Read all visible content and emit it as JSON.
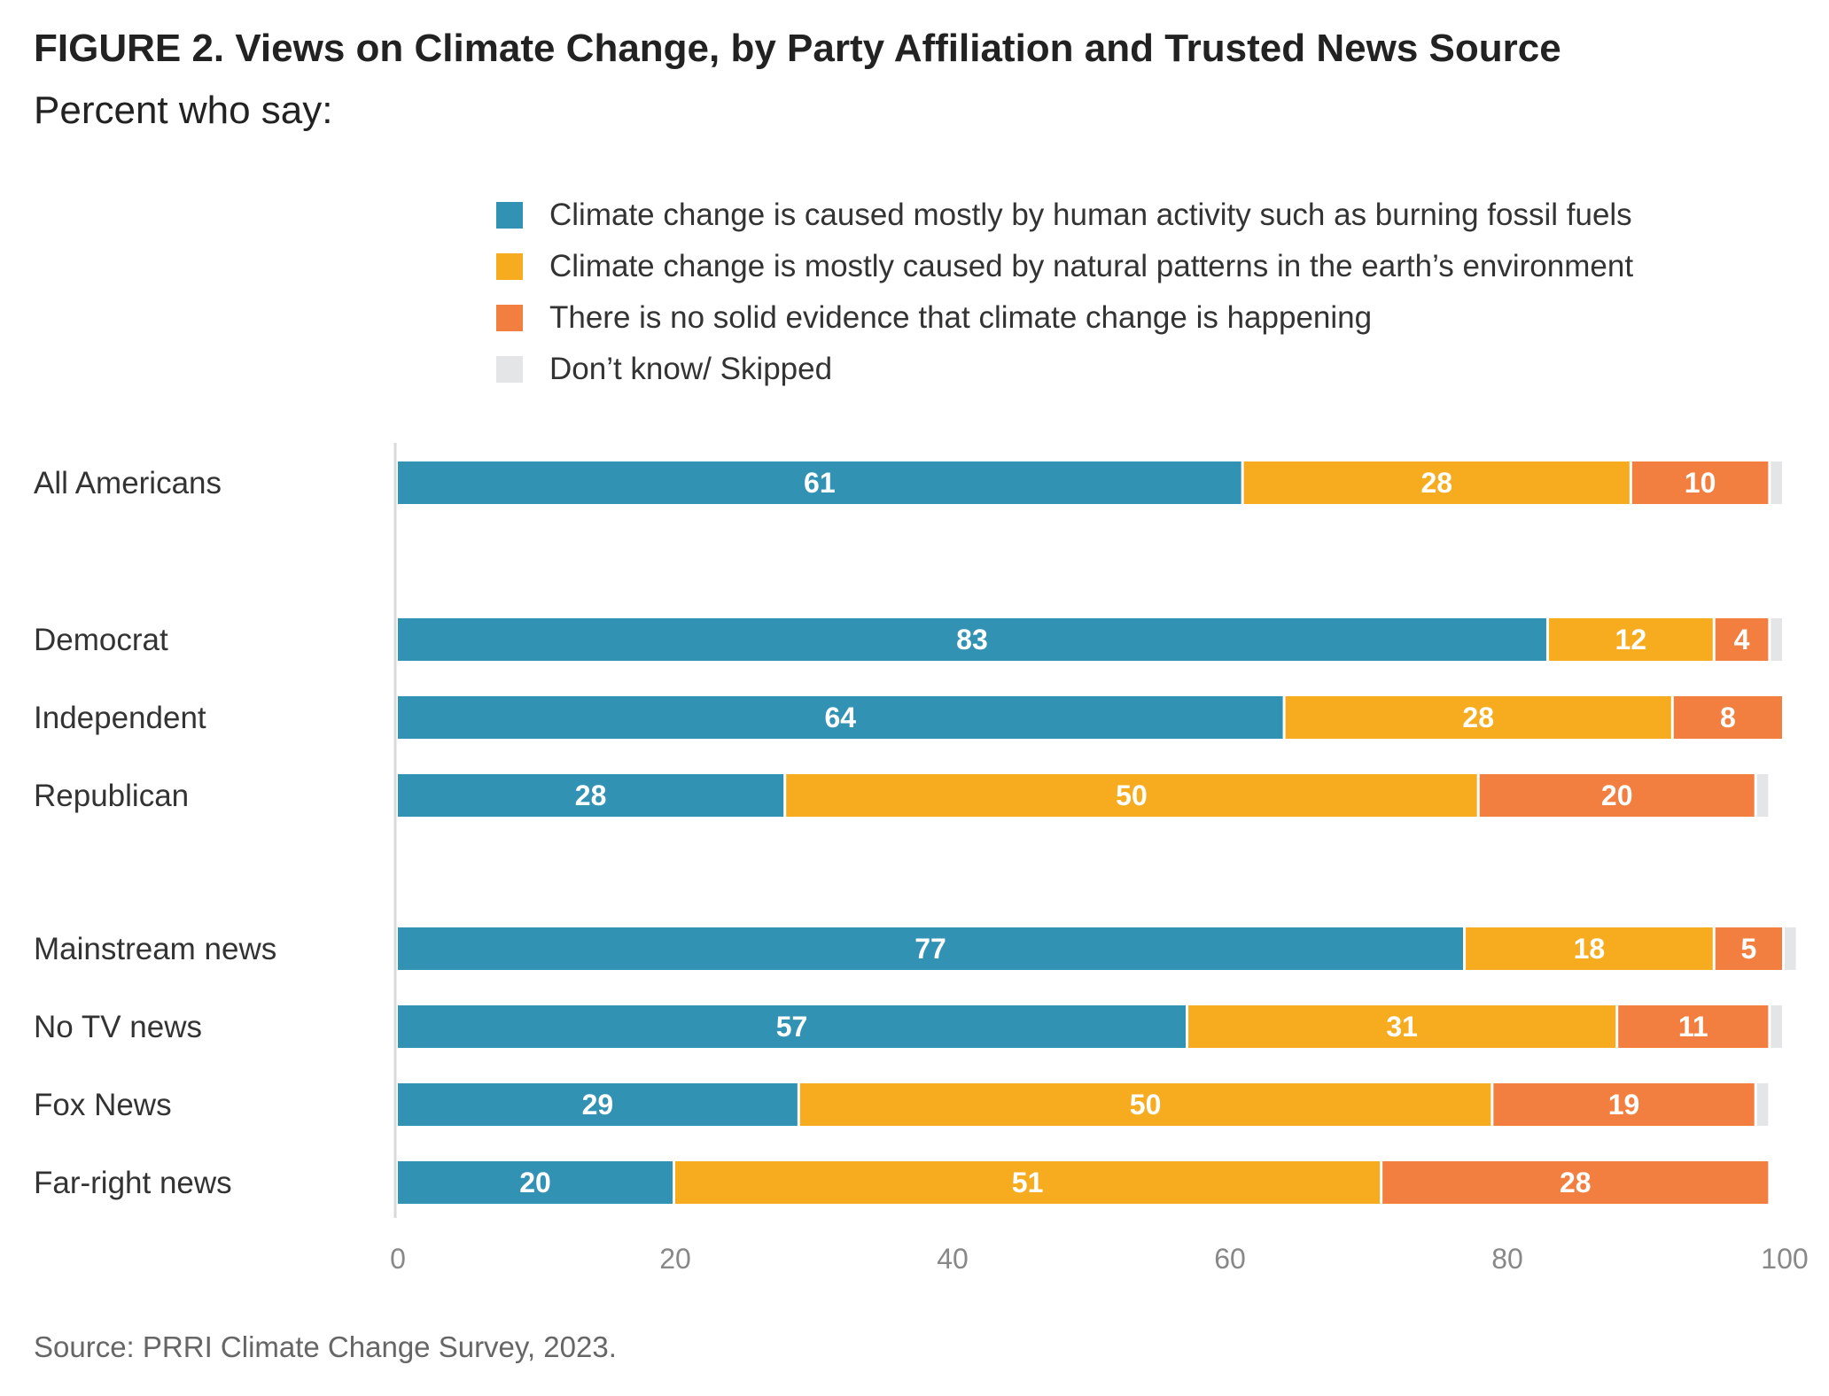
{
  "title": "FIGURE 2.  Views on Climate Change, by Party Affiliation and Trusted News Source",
  "subtitle": "Percent who say:",
  "source": "Source: PRRI Climate Change Survey, 2023.",
  "legend": [
    {
      "label": "Climate change is caused mostly by human activity such as burning fossil fuels",
      "color": "#3192b3"
    },
    {
      "label": "Climate change is mostly caused by natural patterns in the earth’s environment",
      "color": "#f6ac1e"
    },
    {
      "label": "There is no solid evidence that climate change is happening",
      "color": "#f27f3f"
    },
    {
      "label": "Don’t know/ Skipped",
      "color": "#e4e5e7"
    }
  ],
  "chart_data": {
    "type": "bar",
    "orientation": "horizontal",
    "stacked": true,
    "xlim": [
      0,
      100
    ],
    "xticks": [
      0,
      20,
      40,
      60,
      80,
      100
    ],
    "categories": [
      "All Americans",
      "Democrat",
      "Independent",
      "Republican",
      "Mainstream news",
      "No TV news",
      "Fox News",
      "Far-right news"
    ],
    "groups": [
      [
        "All Americans"
      ],
      [
        "Democrat",
        "Independent",
        "Republican"
      ],
      [
        "Mainstream news",
        "No TV news",
        "Fox News",
        "Far-right news"
      ]
    ],
    "series": [
      {
        "name": "Climate change is caused mostly by human activity such as burning fossil fuels",
        "color": "#3192b3",
        "values": [
          61,
          83,
          64,
          28,
          77,
          57,
          29,
          20
        ],
        "labels": [
          "61",
          "83",
          "64",
          "28",
          "77",
          "57",
          "29",
          "20"
        ]
      },
      {
        "name": "Climate change is mostly caused by natural patterns in the earth’s environment",
        "color": "#f6ac1e",
        "values": [
          28,
          12,
          28,
          50,
          18,
          31,
          50,
          51
        ],
        "labels": [
          "28",
          "12",
          "28",
          "50",
          "18",
          "31",
          "50",
          "51"
        ]
      },
      {
        "name": "There is no solid evidence that climate change is happening",
        "color": "#f27f3f",
        "values": [
          10,
          4,
          8,
          20,
          5,
          11,
          19,
          28
        ],
        "labels": [
          "10",
          "4",
          "8",
          "20",
          "5",
          "11",
          "19",
          "28"
        ]
      },
      {
        "name": "Don’t know/ Skipped",
        "color": "#e4e5e7",
        "values": [
          1,
          1,
          0,
          1,
          1,
          1,
          1,
          0
        ],
        "labels": [
          "",
          "",
          "",
          "",
          "",
          "",
          "",
          ""
        ]
      }
    ],
    "grid": false,
    "legend_position": "top"
  }
}
